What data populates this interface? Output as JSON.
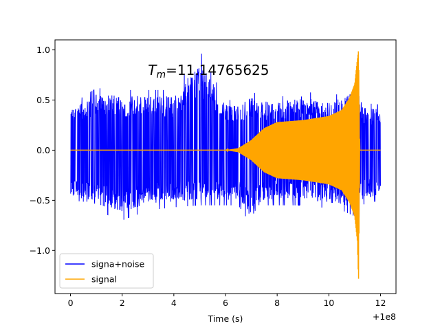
{
  "chart_data": {
    "type": "line",
    "annotation": {
      "prefix": "T",
      "subscript": "m",
      "value": "=11.14765625"
    },
    "xlabel": "Time (s)",
    "offset_label": "+1e8",
    "xlim": [
      -0.6,
      12.6
    ],
    "ylim": [
      -1.43,
      1.1
    ],
    "x_ticks": [
      0,
      2,
      4,
      6,
      8,
      10,
      12
    ],
    "x_tick_labels": [
      "0",
      "2",
      "4",
      "6",
      "8",
      "10",
      "12"
    ],
    "y_ticks": [
      -1.0,
      -0.5,
      0.0,
      0.5,
      1.0
    ],
    "y_tick_labels": [
      "−1.0",
      "−0.5",
      "0.0",
      "0.5",
      "1.0"
    ],
    "legend_position": "lower-left",
    "series": [
      {
        "name": "signa+noise",
        "color": "#0000ff",
        "x_range": [
          0,
          12
        ],
        "envelope_x": [
          0,
          1,
          2,
          3,
          4,
          5,
          6,
          6.5,
          7,
          7.5,
          8,
          9,
          10,
          10.5,
          11,
          11.1,
          11.15,
          11.2,
          12
        ],
        "envelope_upper": [
          0.45,
          0.62,
          0.6,
          0.6,
          0.6,
          1.0,
          0.5,
          0.5,
          0.58,
          0.55,
          0.52,
          0.6,
          0.52,
          0.58,
          0.66,
          0.7,
          0.86,
          0.48,
          0.45
        ],
        "envelope_lower": [
          -0.55,
          -0.6,
          -0.7,
          -0.6,
          -0.57,
          -0.55,
          -0.55,
          -0.55,
          -0.75,
          -0.55,
          -0.55,
          -0.55,
          -0.58,
          -0.6,
          -0.66,
          -0.8,
          -1.04,
          -0.55,
          -0.5
        ]
      },
      {
        "name": "signal",
        "color": "#ffa500",
        "x_range": [
          0,
          12
        ],
        "envelope_x": [
          0,
          6.0,
          6.5,
          7.0,
          7.5,
          8.0,
          9.0,
          10.0,
          10.5,
          10.8,
          11.0,
          11.1,
          11.15,
          11.2,
          12
        ],
        "envelope_upper": [
          0,
          0,
          0.02,
          0.1,
          0.22,
          0.28,
          0.3,
          0.34,
          0.4,
          0.52,
          0.66,
          0.9,
          1.0,
          0,
          0
        ],
        "envelope_lower": [
          0,
          0,
          -0.02,
          -0.1,
          -0.22,
          -0.28,
          -0.3,
          -0.34,
          -0.4,
          -0.52,
          -0.66,
          -0.9,
          -1.32,
          0,
          0
        ]
      }
    ]
  }
}
